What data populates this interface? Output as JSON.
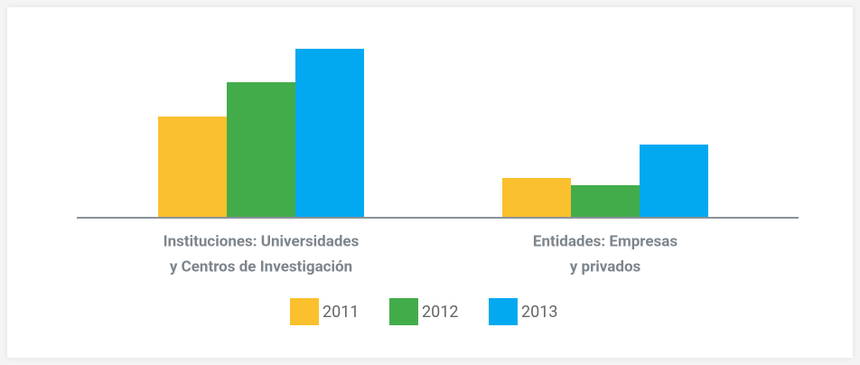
{
  "chart_data": {
    "type": "bar",
    "categories": [
      [
        "Instituciones: Universidades",
        "y Centros de Investigación"
      ],
      [
        "Entidades: Empresas",
        "y privados"
      ]
    ],
    "series": [
      {
        "name": "2011",
        "color": "#fbc02d",
        "values": [
          112,
          44
        ]
      },
      {
        "name": "2012",
        "color": "#43ac4a",
        "values": [
          150,
          36
        ]
      },
      {
        "name": "2013",
        "color": "#03a9f0",
        "values": [
          187,
          81
        ]
      }
    ],
    "ylim": [
      0,
      200
    ]
  }
}
